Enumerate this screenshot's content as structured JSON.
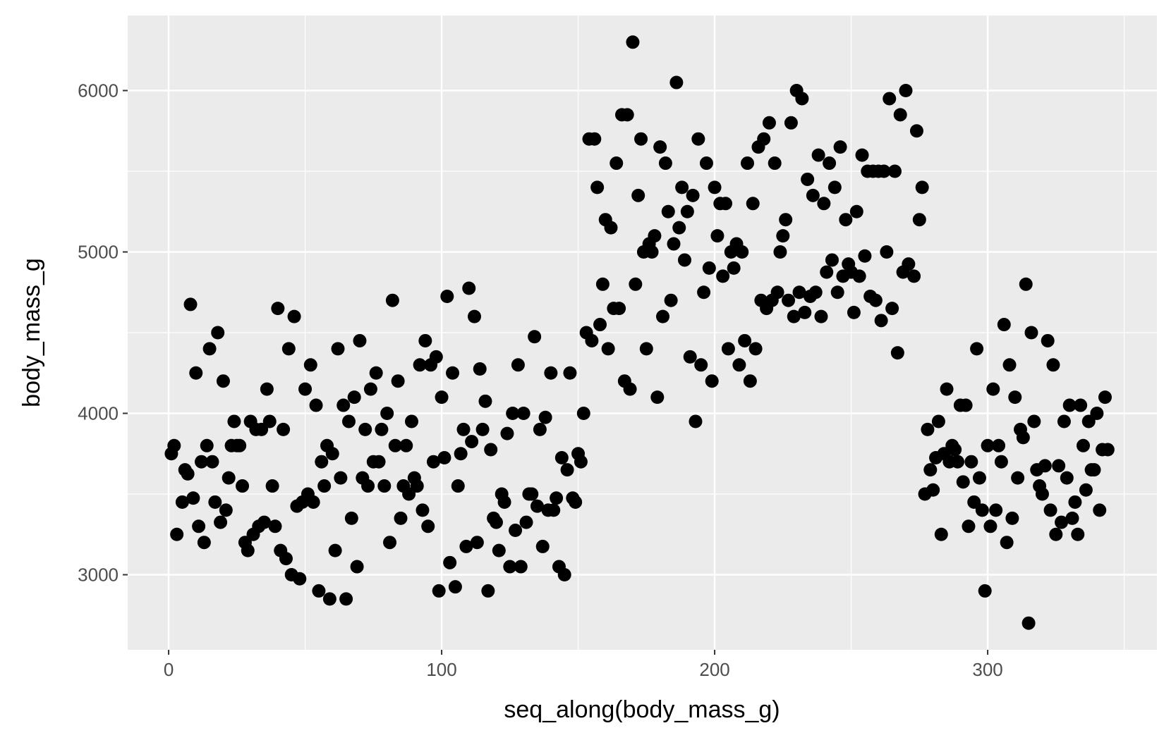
{
  "chart_data": {
    "type": "scatter",
    "title": "",
    "xlabel": "seq_along(body_mass_g)",
    "ylabel": "body_mass_g",
    "xlim": [
      -15,
      362
    ],
    "ylim": [
      2535,
      6465
    ],
    "x_ticks": [
      0,
      100,
      200,
      300
    ],
    "x_tick_labels": [
      "0",
      "100",
      "200",
      "300"
    ],
    "y_ticks": [
      3000,
      4000,
      5000,
      6000
    ],
    "y_tick_labels": [
      "3000",
      "4000",
      "5000",
      "6000"
    ],
    "grid": true,
    "legend": "none",
    "colors": {
      "panel": "#ebebeb",
      "grid": "#ffffff",
      "point": "#000000",
      "tick": "#333333"
    },
    "points": [
      [
        1,
        3750
      ],
      [
        2,
        3800
      ],
      [
        3,
        3250
      ],
      [
        5,
        3450
      ],
      [
        6,
        3650
      ],
      [
        7,
        3625
      ],
      [
        8,
        4675
      ],
      [
        9,
        3475
      ],
      [
        10,
        4250
      ],
      [
        11,
        3300
      ],
      [
        12,
        3700
      ],
      [
        13,
        3200
      ],
      [
        14,
        3800
      ],
      [
        15,
        4400
      ],
      [
        16,
        3700
      ],
      [
        17,
        3450
      ],
      [
        18,
        4500
      ],
      [
        19,
        3325
      ],
      [
        20,
        4200
      ],
      [
        21,
        3400
      ],
      [
        22,
        3600
      ],
      [
        23,
        3800
      ],
      [
        24,
        3950
      ],
      [
        25,
        3800
      ],
      [
        26,
        3800
      ],
      [
        27,
        3550
      ],
      [
        28,
        3200
      ],
      [
        29,
        3150
      ],
      [
        30,
        3950
      ],
      [
        31,
        3250
      ],
      [
        32,
        3900
      ],
      [
        33,
        3300
      ],
      [
        34,
        3900
      ],
      [
        35,
        3325
      ],
      [
        36,
        4150
      ],
      [
        37,
        3950
      ],
      [
        38,
        3550
      ],
      [
        39,
        3300
      ],
      [
        40,
        4650
      ],
      [
        41,
        3150
      ],
      [
        42,
        3900
      ],
      [
        43,
        3100
      ],
      [
        44,
        4400
      ],
      [
        45,
        3000
      ],
      [
        46,
        4600
      ],
      [
        47,
        3425
      ],
      [
        48,
        2975
      ],
      [
        49,
        3450
      ],
      [
        50,
        4150
      ],
      [
        51,
        3500
      ],
      [
        52,
        4300
      ],
      [
        53,
        3450
      ],
      [
        54,
        4050
      ],
      [
        55,
        2900
      ],
      [
        56,
        3700
      ],
      [
        57,
        3550
      ],
      [
        58,
        3800
      ],
      [
        59,
        2850
      ],
      [
        60,
        3750
      ],
      [
        61,
        3150
      ],
      [
        62,
        4400
      ],
      [
        63,
        3600
      ],
      [
        64,
        4050
      ],
      [
        65,
        2850
      ],
      [
        66,
        3950
      ],
      [
        67,
        3350
      ],
      [
        68,
        4100
      ],
      [
        69,
        3050
      ],
      [
        70,
        4450
      ],
      [
        71,
        3600
      ],
      [
        72,
        3900
      ],
      [
        73,
        3550
      ],
      [
        74,
        4150
      ],
      [
        75,
        3700
      ],
      [
        76,
        4250
      ],
      [
        77,
        3700
      ],
      [
        78,
        3900
      ],
      [
        79,
        3550
      ],
      [
        80,
        4000
      ],
      [
        81,
        3200
      ],
      [
        82,
        4700
      ],
      [
        83,
        3800
      ],
      [
        84,
        4200
      ],
      [
        85,
        3350
      ],
      [
        86,
        3550
      ],
      [
        87,
        3800
      ],
      [
        88,
        3500
      ],
      [
        89,
        3950
      ],
      [
        90,
        3600
      ],
      [
        91,
        3550
      ],
      [
        92,
        4300
      ],
      [
        93,
        3400
      ],
      [
        94,
        4450
      ],
      [
        95,
        3300
      ],
      [
        96,
        4300
      ],
      [
        97,
        3700
      ],
      [
        98,
        4350
      ],
      [
        99,
        2900
      ],
      [
        100,
        4100
      ],
      [
        101,
        3725
      ],
      [
        102,
        4725
      ],
      [
        103,
        3075
      ],
      [
        104,
        4250
      ],
      [
        105,
        2925
      ],
      [
        106,
        3550
      ],
      [
        107,
        3750
      ],
      [
        108,
        3900
      ],
      [
        109,
        3175
      ],
      [
        110,
        4775
      ],
      [
        111,
        3825
      ],
      [
        112,
        4600
      ],
      [
        113,
        3200
      ],
      [
        114,
        4275
      ],
      [
        115,
        3900
      ],
      [
        116,
        4075
      ],
      [
        117,
        2900
      ],
      [
        118,
        3775
      ],
      [
        119,
        3350
      ],
      [
        120,
        3325
      ],
      [
        121,
        3150
      ],
      [
        122,
        3500
      ],
      [
        123,
        3450
      ],
      [
        124,
        3875
      ],
      [
        125,
        3050
      ],
      [
        126,
        4000
      ],
      [
        127,
        3275
      ],
      [
        128,
        4300
      ],
      [
        129,
        3050
      ],
      [
        130,
        4000
      ],
      [
        131,
        3325
      ],
      [
        132,
        3500
      ],
      [
        133,
        3500
      ],
      [
        134,
        4475
      ],
      [
        135,
        3425
      ],
      [
        136,
        3900
      ],
      [
        137,
        3175
      ],
      [
        138,
        3975
      ],
      [
        139,
        3400
      ],
      [
        140,
        4250
      ],
      [
        141,
        3400
      ],
      [
        142,
        3475
      ],
      [
        143,
        3050
      ],
      [
        144,
        3725
      ],
      [
        145,
        3000
      ],
      [
        146,
        3650
      ],
      [
        147,
        4250
      ],
      [
        148,
        3475
      ],
      [
        149,
        3450
      ],
      [
        150,
        3750
      ],
      [
        151,
        3700
      ],
      [
        152,
        4000
      ],
      [
        153,
        4500
      ],
      [
        154,
        5700
      ],
      [
        155,
        4450
      ],
      [
        156,
        5700
      ],
      [
        157,
        5400
      ],
      [
        158,
        4550
      ],
      [
        159,
        4800
      ],
      [
        160,
        5200
      ],
      [
        161,
        4400
      ],
      [
        162,
        5150
      ],
      [
        163,
        4650
      ],
      [
        164,
        5550
      ],
      [
        165,
        4650
      ],
      [
        166,
        5850
      ],
      [
        167,
        4200
      ],
      [
        168,
        5850
      ],
      [
        169,
        4150
      ],
      [
        170,
        6300
      ],
      [
        171,
        4800
      ],
      [
        172,
        5350
      ],
      [
        173,
        5700
      ],
      [
        174,
        5000
      ],
      [
        175,
        4400
      ],
      [
        176,
        5050
      ],
      [
        177,
        5000
      ],
      [
        178,
        5100
      ],
      [
        179,
        4100
      ],
      [
        180,
        5650
      ],
      [
        181,
        4600
      ],
      [
        182,
        5550
      ],
      [
        183,
        5250
      ],
      [
        184,
        4700
      ],
      [
        185,
        5050
      ],
      [
        186,
        6050
      ],
      [
        187,
        5150
      ],
      [
        188,
        5400
      ],
      [
        189,
        4950
      ],
      [
        190,
        5250
      ],
      [
        191,
        4350
      ],
      [
        192,
        5350
      ],
      [
        193,
        3950
      ],
      [
        194,
        5700
      ],
      [
        195,
        4300
      ],
      [
        196,
        4750
      ],
      [
        197,
        5550
      ],
      [
        198,
        4900
      ],
      [
        199,
        4200
      ],
      [
        200,
        5400
      ],
      [
        201,
        5100
      ],
      [
        202,
        5300
      ],
      [
        203,
        4850
      ],
      [
        204,
        5300
      ],
      [
        205,
        4400
      ],
      [
        206,
        5000
      ],
      [
        207,
        4900
      ],
      [
        208,
        5050
      ],
      [
        209,
        4300
      ],
      [
        210,
        5000
      ],
      [
        211,
        4450
      ],
      [
        212,
        5550
      ],
      [
        213,
        4200
      ],
      [
        214,
        5300
      ],
      [
        215,
        4400
      ],
      [
        216,
        5650
      ],
      [
        217,
        4700
      ],
      [
        218,
        5700
      ],
      [
        219,
        4650
      ],
      [
        220,
        5800
      ],
      [
        221,
        4700
      ],
      [
        222,
        5550
      ],
      [
        223,
        4750
      ],
      [
        224,
        5000
      ],
      [
        225,
        5100
      ],
      [
        226,
        5200
      ],
      [
        227,
        4700
      ],
      [
        228,
        5800
      ],
      [
        229,
        4600
      ],
      [
        230,
        6000
      ],
      [
        231,
        4750
      ],
      [
        232,
        5950
      ],
      [
        233,
        4625
      ],
      [
        234,
        5450
      ],
      [
        235,
        4725
      ],
      [
        236,
        5350
      ],
      [
        237,
        4750
      ],
      [
        238,
        5600
      ],
      [
        239,
        4600
      ],
      [
        240,
        5300
      ],
      [
        241,
        4875
      ],
      [
        242,
        5550
      ],
      [
        243,
        4950
      ],
      [
        244,
        5400
      ],
      [
        245,
        4750
      ],
      [
        246,
        5650
      ],
      [
        247,
        4850
      ],
      [
        248,
        5200
      ],
      [
        249,
        4925
      ],
      [
        250,
        4875
      ],
      [
        251,
        4625
      ],
      [
        252,
        5250
      ],
      [
        253,
        4850
      ],
      [
        254,
        5600
      ],
      [
        255,
        4975
      ],
      [
        256,
        5500
      ],
      [
        257,
        4725
      ],
      [
        258,
        5500
      ],
      [
        259,
        4700
      ],
      [
        260,
        5500
      ],
      [
        261,
        4575
      ],
      [
        262,
        5500
      ],
      [
        263,
        5000
      ],
      [
        264,
        5950
      ],
      [
        265,
        4650
      ],
      [
        266,
        5500
      ],
      [
        267,
        4375
      ],
      [
        268,
        5850
      ],
      [
        269,
        4875
      ],
      [
        270,
        6000
      ],
      [
        271,
        4925
      ],
      [
        273,
        4850
      ],
      [
        274,
        5750
      ],
      [
        275,
        5200
      ],
      [
        276,
        5400
      ],
      [
        277,
        3500
      ],
      [
        278,
        3900
      ],
      [
        279,
        3650
      ],
      [
        280,
        3525
      ],
      [
        281,
        3725
      ],
      [
        282,
        3950
      ],
      [
        283,
        3250
      ],
      [
        284,
        3750
      ],
      [
        285,
        4150
      ],
      [
        286,
        3700
      ],
      [
        287,
        3800
      ],
      [
        288,
        3775
      ],
      [
        289,
        3700
      ],
      [
        290,
        4050
      ],
      [
        291,
        3575
      ],
      [
        292,
        4050
      ],
      [
        293,
        3300
      ],
      [
        294,
        3700
      ],
      [
        295,
        3450
      ],
      [
        296,
        4400
      ],
      [
        297,
        3600
      ],
      [
        298,
        3400
      ],
      [
        299,
        2900
      ],
      [
        300,
        3800
      ],
      [
        301,
        3300
      ],
      [
        302,
        4150
      ],
      [
        303,
        3400
      ],
      [
        304,
        3800
      ],
      [
        305,
        3700
      ],
      [
        306,
        4550
      ],
      [
        307,
        3200
      ],
      [
        308,
        4300
      ],
      [
        309,
        3350
      ],
      [
        310,
        4100
      ],
      [
        311,
        3600
      ],
      [
        312,
        3900
      ],
      [
        313,
        3850
      ],
      [
        314,
        4800
      ],
      [
        315,
        2700
      ],
      [
        316,
        4500
      ],
      [
        317,
        3950
      ],
      [
        318,
        3650
      ],
      [
        319,
        3550
      ],
      [
        320,
        3500
      ],
      [
        321,
        3675
      ],
      [
        322,
        4450
      ],
      [
        323,
        3400
      ],
      [
        324,
        4300
      ],
      [
        325,
        3250
      ],
      [
        326,
        3675
      ],
      [
        327,
        3325
      ],
      [
        328,
        3950
      ],
      [
        329,
        3600
      ],
      [
        330,
        4050
      ],
      [
        331,
        3350
      ],
      [
        332,
        3450
      ],
      [
        333,
        3250
      ],
      [
        334,
        4050
      ],
      [
        335,
        3800
      ],
      [
        336,
        3525
      ],
      [
        337,
        3950
      ],
      [
        338,
        3650
      ],
      [
        339,
        3650
      ],
      [
        340,
        4000
      ],
      [
        341,
        3400
      ],
      [
        342,
        3775
      ],
      [
        343,
        4100
      ],
      [
        344,
        3775
      ]
    ]
  }
}
